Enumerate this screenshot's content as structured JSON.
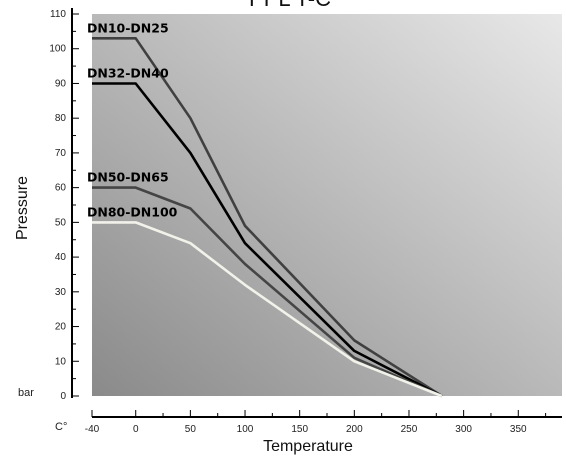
{
  "page_title": "PPL T-C",
  "chart_data": {
    "type": "line",
    "title": "",
    "xlabel": "Temperature",
    "ylabel": "Pressure",
    "x_unit": "C°",
    "y_unit": "bar",
    "xlim": [
      -40,
      390
    ],
    "ylim": [
      0,
      110
    ],
    "x_ticks": [
      -40,
      0,
      50,
      100,
      150,
      200,
      250,
      300,
      350
    ],
    "y_ticks": [
      0,
      10,
      20,
      30,
      40,
      50,
      60,
      70,
      80,
      90,
      100,
      110
    ],
    "grid": false,
    "background_gradient": [
      "#8a8a8a",
      "#e8e8e8"
    ],
    "series": [
      {
        "name": "DN10-DN25",
        "color": "#404040",
        "x": [
          -40,
          0,
          50,
          100,
          200,
          280
        ],
        "y": [
          103,
          103,
          80,
          49,
          16,
          0
        ]
      },
      {
        "name": "DN32-DN40",
        "color": "#000000",
        "x": [
          -40,
          0,
          50,
          100,
          200,
          280
        ],
        "y": [
          90,
          90,
          70,
          44,
          13,
          0
        ]
      },
      {
        "name": "DN50-DN65",
        "color": "#454545",
        "x": [
          -40,
          0,
          50,
          100,
          200,
          280
        ],
        "y": [
          60,
          60,
          54,
          38,
          11,
          0
        ]
      },
      {
        "name": "DN80-DN100",
        "color": "#f2f2ea",
        "x": [
          -40,
          0,
          50,
          100,
          200,
          280
        ],
        "y": [
          50,
          50,
          44,
          32,
          10,
          0
        ]
      }
    ]
  }
}
